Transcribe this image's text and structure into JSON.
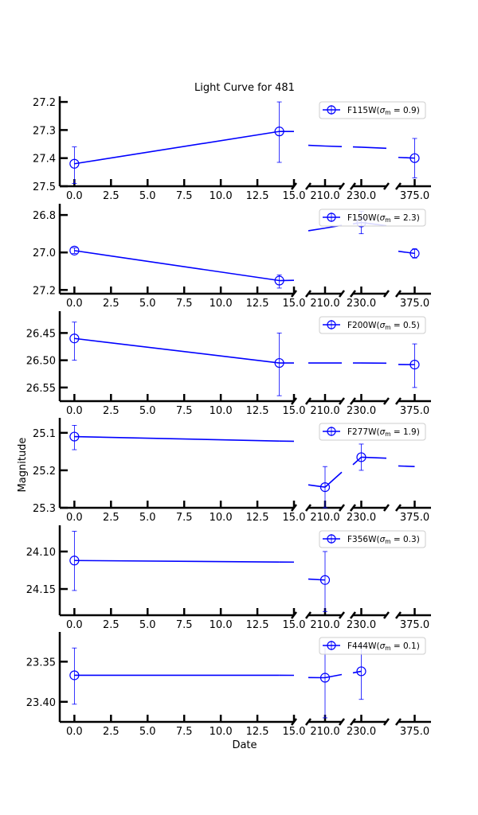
{
  "chart_data": {
    "type": "line",
    "title": "Light Curve for 481",
    "xlabel": "Date",
    "ylabel": "Magnitude",
    "y_inverted": true,
    "grid": false,
    "legend_position": "top-right",
    "line_color": "#0000ff",
    "x_segments": [
      {
        "range": [
          -1,
          15
        ],
        "ticks": [
          0,
          2.5,
          5,
          7.5,
          10,
          12.5,
          15
        ],
        "tick_labels": [
          "0.0",
          "2.5",
          "5.0",
          "7.5",
          "10.0",
          "12.5",
          "15.0"
        ]
      },
      {
        "range": [
          200,
          220
        ],
        "ticks": [
          210
        ],
        "tick_labels": [
          "210.0"
        ]
      },
      {
        "range": [
          225,
          245
        ],
        "ticks": [
          230
        ],
        "tick_labels": [
          "230.0"
        ]
      },
      {
        "range": [
          365,
          385
        ],
        "ticks": [
          375
        ],
        "tick_labels": [
          "375.0"
        ]
      }
    ],
    "panels": [
      {
        "legend": "F115W",
        "sigma_m": "0.9",
        "ylim": [
          27.5,
          27.18
        ],
        "yticks": [
          27.2,
          27.3,
          27.4,
          27.5
        ],
        "ytick_labels": [
          "27.2",
          "27.3",
          "27.4",
          "27.5"
        ],
        "points": [
          {
            "x": 0,
            "y": 27.42,
            "err_low": 27.36,
            "err_high": 27.49,
            "marker": true
          },
          {
            "x": 14,
            "y": 27.305,
            "err_low": 27.2,
            "err_high": 27.415,
            "marker": true
          },
          {
            "x": 210,
            "y": 27.357,
            "marker": false
          },
          {
            "x": 230,
            "y": 27.361,
            "marker": false
          },
          {
            "x": 375,
            "y": 27.4,
            "err_low": 27.33,
            "err_high": 27.47,
            "marker": true
          }
        ]
      },
      {
        "legend": "F150W",
        "sigma_m": "2.3",
        "ylim": [
          27.22,
          26.74
        ],
        "yticks": [
          26.8,
          27.0,
          27.2
        ],
        "ytick_labels": [
          "26.8",
          "27.0",
          "27.2"
        ],
        "points": [
          {
            "x": 0,
            "y": 26.99,
            "err_low": 26.975,
            "err_high": 27.005,
            "marker": true
          },
          {
            "x": 14,
            "y": 27.15,
            "err_low": 27.12,
            "err_high": 27.19,
            "marker": true
          },
          {
            "x": 210,
            "y": 26.87,
            "marker": false
          },
          {
            "x": 230,
            "y": 26.84,
            "err_low": 26.78,
            "err_high": 26.9,
            "marker": true
          },
          {
            "x": 375,
            "y": 27.005,
            "err_low": 26.98,
            "err_high": 27.03,
            "marker": true
          }
        ]
      },
      {
        "legend": "F200W",
        "sigma_m": "0.5",
        "ylim": [
          26.575,
          26.41
        ],
        "yticks": [
          26.45,
          26.5,
          26.55
        ],
        "ytick_labels": [
          "26.45",
          "26.50",
          "26.55"
        ],
        "points": [
          {
            "x": 0,
            "y": 26.46,
            "err_low": 26.43,
            "err_high": 26.5,
            "marker": true
          },
          {
            "x": 14,
            "y": 26.505,
            "err_low": 26.45,
            "err_high": 26.565,
            "marker": true
          },
          {
            "x": 210,
            "y": 26.505,
            "marker": false
          },
          {
            "x": 230,
            "y": 26.505,
            "marker": false
          },
          {
            "x": 375,
            "y": 26.508,
            "err_low": 26.47,
            "err_high": 26.55,
            "marker": true
          }
        ]
      },
      {
        "legend": "F277W",
        "sigma_m": "1.9",
        "ylim": [
          25.3,
          25.06
        ],
        "yticks": [
          25.1,
          25.2,
          25.3
        ],
        "ytick_labels": [
          "25.1",
          "25.2",
          "25.3"
        ],
        "points": [
          {
            "x": 0,
            "y": 25.11,
            "err_low": 25.08,
            "err_high": 25.145,
            "marker": true
          },
          {
            "x": 14,
            "y": 25.122,
            "marker": false
          },
          {
            "x": 210,
            "y": 25.245,
            "err_low": 25.19,
            "err_high": 25.3,
            "marker": true
          },
          {
            "x": 230,
            "y": 25.165,
            "err_low": 25.13,
            "err_high": 25.2,
            "marker": true
          },
          {
            "x": 375,
            "y": 25.19,
            "marker": false
          }
        ]
      },
      {
        "legend": "F356W",
        "sigma_m": "0.3",
        "ylim": [
          24.185,
          24.065
        ],
        "yticks": [
          24.1,
          24.15
        ],
        "ytick_labels": [
          "24.10",
          "24.15"
        ],
        "points": [
          {
            "x": 0,
            "y": 24.112,
            "err_low": 24.073,
            "err_high": 24.152,
            "marker": true
          },
          {
            "x": 14,
            "y": 24.114,
            "marker": false
          },
          {
            "x": 210,
            "y": 24.138,
            "err_low": 24.1,
            "err_high": 24.18,
            "marker": true
          }
        ]
      },
      {
        "legend": "F444W",
        "sigma_m": "0.1",
        "ylim": [
          23.425,
          23.313
        ],
        "yticks": [
          23.35,
          23.4
        ],
        "ytick_labels": [
          "23.35",
          "23.40"
        ],
        "points": [
          {
            "x": 0,
            "y": 23.367,
            "err_low": 23.333,
            "err_high": 23.403,
            "marker": true
          },
          {
            "x": 14,
            "y": 23.367,
            "marker": false
          },
          {
            "x": 210,
            "y": 23.37,
            "err_low": 23.33,
            "err_high": 23.42,
            "marker": true
          },
          {
            "x": 230,
            "y": 23.362,
            "err_low": 23.33,
            "err_high": 23.397,
            "marker": true
          }
        ]
      }
    ]
  }
}
